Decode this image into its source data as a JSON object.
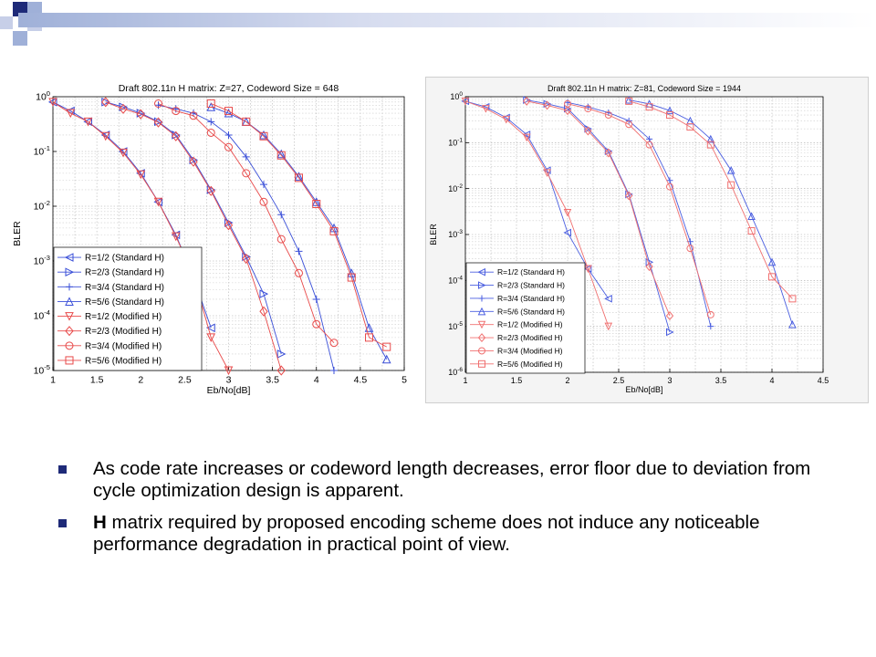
{
  "chart_data": [
    {
      "type": "line",
      "title": "Draft 802.11n H matrix: Z=27, Codeword Size = 648",
      "xlabel": "Eb/No[dB]",
      "ylabel": "BLER",
      "xlim": [
        1,
        5
      ],
      "ylim": [
        1e-05,
        1
      ],
      "xscale": "linear",
      "yscale": "log",
      "xticks": [
        "1",
        "1.5",
        "2",
        "2.5",
        "3",
        "3.5",
        "4",
        "4.5",
        "5"
      ],
      "yticks": [
        "10^0",
        "10^-1",
        "10^-2",
        "10^-3",
        "10^-4",
        "10^-5"
      ],
      "grid": true,
      "legend_position": "bottom-left",
      "series": [
        {
          "name": "R=1/2 (Standard H)",
          "color": "#3a4fd8",
          "marker": "triangle-left",
          "points": [
            [
              1,
              0.8
            ],
            [
              1.2,
              0.55
            ],
            [
              1.4,
              0.35
            ],
            [
              1.6,
              0.2
            ],
            [
              1.8,
              0.1
            ],
            [
              2,
              0.04
            ],
            [
              2.2,
              0.012
            ],
            [
              2.4,
              0.003
            ],
            [
              2.6,
              0.0005
            ],
            [
              2.8,
              6e-05
            ]
          ]
        },
        {
          "name": "R=2/3 (Standard H)",
          "color": "#3a4fd8",
          "marker": "triangle-right",
          "points": [
            [
              1.6,
              0.8
            ],
            [
              1.8,
              0.65
            ],
            [
              2,
              0.5
            ],
            [
              2.2,
              0.35
            ],
            [
              2.4,
              0.2
            ],
            [
              2.6,
              0.07
            ],
            [
              2.8,
              0.02
            ],
            [
              3,
              0.005
            ],
            [
              3.2,
              0.0012
            ],
            [
              3.4,
              0.00025
            ],
            [
              3.6,
              2e-05
            ]
          ]
        },
        {
          "name": "R=3/4 (Standard H)",
          "color": "#3a4fd8",
          "marker": "plus",
          "points": [
            [
              2.2,
              0.7
            ],
            [
              2.4,
              0.6
            ],
            [
              2.6,
              0.5
            ],
            [
              2.8,
              0.35
            ],
            [
              3,
              0.2
            ],
            [
              3.2,
              0.08
            ],
            [
              3.4,
              0.025
            ],
            [
              3.6,
              0.007
            ],
            [
              3.8,
              0.0015
            ],
            [
              4,
              0.0002
            ],
            [
              4.2,
              1e-05
            ]
          ]
        },
        {
          "name": "R=5/6 (Standard H)",
          "color": "#3a4fd8",
          "marker": "triangle-up",
          "points": [
            [
              2.8,
              0.65
            ],
            [
              3,
              0.5
            ],
            [
              3.2,
              0.35
            ],
            [
              3.4,
              0.2
            ],
            [
              3.6,
              0.09
            ],
            [
              3.8,
              0.035
            ],
            [
              4,
              0.012
            ],
            [
              4.2,
              0.004
            ],
            [
              4.4,
              0.0006
            ],
            [
              4.6,
              6e-05
            ],
            [
              4.8,
              1.6e-05
            ]
          ]
        },
        {
          "name": "R=1/2 (Modified H)",
          "color": "#e84a4a",
          "marker": "triangle-down",
          "points": [
            [
              1,
              0.8
            ],
            [
              1.2,
              0.5
            ],
            [
              1.4,
              0.35
            ],
            [
              1.6,
              0.19
            ],
            [
              1.8,
              0.095
            ],
            [
              2,
              0.038
            ],
            [
              2.2,
              0.012
            ],
            [
              2.4,
              0.0028
            ],
            [
              2.6,
              0.00055
            ],
            [
              2.8,
              4e-05
            ],
            [
              3,
              1e-05
            ]
          ]
        },
        {
          "name": "R=2/3 (Modified H)",
          "color": "#e84a4a",
          "marker": "diamond",
          "points": [
            [
              1.6,
              0.8
            ],
            [
              1.8,
              0.6
            ],
            [
              2,
              0.48
            ],
            [
              2.2,
              0.34
            ],
            [
              2.4,
              0.19
            ],
            [
              2.6,
              0.065
            ],
            [
              2.8,
              0.019
            ],
            [
              3,
              0.0045
            ],
            [
              3.2,
              0.0011
            ],
            [
              3.4,
              0.00012
            ],
            [
              3.6,
              1e-05
            ]
          ]
        },
        {
          "name": "R=3/4 (Modified H)",
          "color": "#e84a4a",
          "marker": "circle",
          "points": [
            [
              2.2,
              0.75
            ],
            [
              2.4,
              0.55
            ],
            [
              2.6,
              0.45
            ],
            [
              2.8,
              0.22
            ],
            [
              3,
              0.12
            ],
            [
              3.2,
              0.04
            ],
            [
              3.4,
              0.012
            ],
            [
              3.6,
              0.0025
            ],
            [
              3.8,
              0.0006
            ],
            [
              4,
              7e-05
            ],
            [
              4.2,
              3.2e-05
            ]
          ]
        },
        {
          "name": "R=5/6 (Modified H)",
          "color": "#e84a4a",
          "marker": "square",
          "points": [
            [
              2.8,
              0.75
            ],
            [
              3,
              0.55
            ],
            [
              3.2,
              0.35
            ],
            [
              3.4,
              0.19
            ],
            [
              3.6,
              0.085
            ],
            [
              3.8,
              0.033
            ],
            [
              4,
              0.011
            ],
            [
              4.2,
              0.0035
            ],
            [
              4.4,
              0.0005
            ],
            [
              4.6,
              4e-05
            ],
            [
              4.8,
              2.7e-05
            ]
          ]
        }
      ]
    },
    {
      "type": "line",
      "title": "Draft 802.11n H matrix: Z=81, Codeword Size = 1944",
      "xlabel": "Eb/No[dB]",
      "ylabel": "BLER",
      "xlim": [
        1,
        4.5
      ],
      "ylim": [
        1e-06,
        1
      ],
      "xscale": "linear",
      "yscale": "log",
      "xticks": [
        "1",
        "1.5",
        "2",
        "2.5",
        "3",
        "3.5",
        "4",
        "4.5"
      ],
      "yticks": [
        "10^0",
        "10^-1",
        "10^-2",
        "10^-3",
        "10^-4",
        "10^-5",
        "10^-6"
      ],
      "grid": true,
      "legend_position": "bottom-left",
      "series": [
        {
          "name": "R=1/2 (Standard H)",
          "color": "#4a5ee0",
          "marker": "triangle-left",
          "points": [
            [
              1,
              0.8
            ],
            [
              1.2,
              0.6
            ],
            [
              1.4,
              0.35
            ],
            [
              1.6,
              0.15
            ],
            [
              1.8,
              0.025
            ],
            [
              2,
              0.0011
            ],
            [
              2.2,
              0.00018
            ],
            [
              2.4,
              4e-05
            ]
          ]
        },
        {
          "name": "R=2/3 (Standard H)",
          "color": "#4a5ee0",
          "marker": "triangle-right",
          "points": [
            [
              1.6,
              0.85
            ],
            [
              1.8,
              0.7
            ],
            [
              2,
              0.55
            ],
            [
              2.2,
              0.2
            ],
            [
              2.4,
              0.065
            ],
            [
              2.6,
              0.0075
            ],
            [
              2.8,
              0.00025
            ],
            [
              3,
              7.5e-06
            ]
          ]
        },
        {
          "name": "R=3/4 (Standard H)",
          "color": "#4a5ee0",
          "marker": "plus",
          "points": [
            [
              2,
              0.75
            ],
            [
              2.2,
              0.6
            ],
            [
              2.4,
              0.45
            ],
            [
              2.6,
              0.3
            ],
            [
              2.8,
              0.12
            ],
            [
              3,
              0.015
            ],
            [
              3.2,
              0.0007
            ],
            [
              3.4,
              1e-05
            ]
          ]
        },
        {
          "name": "R=5/6 (Standard H)",
          "color": "#4a5ee0",
          "marker": "triangle-up",
          "points": [
            [
              2.6,
              0.85
            ],
            [
              2.8,
              0.7
            ],
            [
              3,
              0.5
            ],
            [
              3.2,
              0.3
            ],
            [
              3.4,
              0.12
            ],
            [
              3.6,
              0.025
            ],
            [
              3.8,
              0.0025
            ],
            [
              4,
              0.00025
            ],
            [
              4.2,
              1.1e-05
            ]
          ]
        },
        {
          "name": "R=1/2 (Modified H)",
          "color": "#f07070",
          "marker": "triangle-down",
          "points": [
            [
              1,
              0.8
            ],
            [
              1.2,
              0.55
            ],
            [
              1.4,
              0.32
            ],
            [
              1.6,
              0.13
            ],
            [
              1.8,
              0.022
            ],
            [
              2,
              0.003
            ],
            [
              2.2,
              0.00018
            ],
            [
              2.4,
              1e-05
            ]
          ]
        },
        {
          "name": "R=2/3 (Modified H)",
          "color": "#f07070",
          "marker": "diamond",
          "points": [
            [
              1.6,
              0.8
            ],
            [
              1.8,
              0.65
            ],
            [
              2,
              0.5
            ],
            [
              2.2,
              0.18
            ],
            [
              2.4,
              0.06
            ],
            [
              2.6,
              0.007
            ],
            [
              2.8,
              0.0002
            ],
            [
              3,
              1.7e-05
            ]
          ]
        },
        {
          "name": "R=3/4 (Modified H)",
          "color": "#f07070",
          "marker": "circle",
          "points": [
            [
              2,
              0.7
            ],
            [
              2.2,
              0.55
            ],
            [
              2.4,
              0.4
            ],
            [
              2.6,
              0.25
            ],
            [
              2.8,
              0.09
            ],
            [
              3,
              0.011
            ],
            [
              3.2,
              0.0005
            ],
            [
              3.4,
              1.8e-05
            ]
          ]
        },
        {
          "name": "R=5/6 (Modified H)",
          "color": "#f07070",
          "marker": "square",
          "points": [
            [
              2.6,
              0.8
            ],
            [
              2.8,
              0.6
            ],
            [
              3,
              0.4
            ],
            [
              3.2,
              0.22
            ],
            [
              3.4,
              0.09
            ],
            [
              3.6,
              0.012
            ],
            [
              3.8,
              0.0012
            ],
            [
              4,
              0.00012
            ],
            [
              4.2,
              4e-05
            ]
          ]
        }
      ]
    }
  ],
  "bullets": [
    {
      "bold": "",
      "text": "As code rate increases or codeword length decreases, error floor due to deviation from cycle optimization design is apparent."
    },
    {
      "bold": "H",
      "text": " matrix required by proposed encoding scheme does not induce any noticeable performance degradation in practical point of view."
    }
  ],
  "colors": {
    "decor_navy": "#1e2a78",
    "decor_light": "#9fb0d8"
  }
}
